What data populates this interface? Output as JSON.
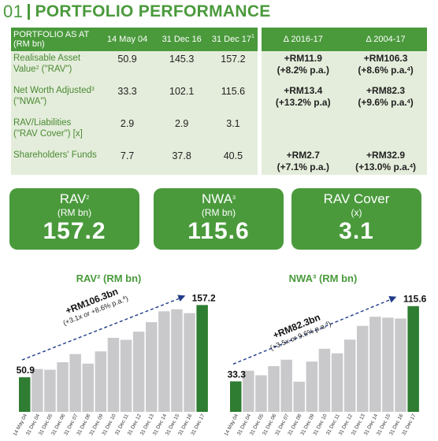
{
  "header": {
    "number": "01",
    "title": "PORTFOLIO PERFORMANCE"
  },
  "table": {
    "columns": [
      "PORTFOLIO AS AT (RM bn)",
      "14 May 04",
      "31 Dec 16",
      "31 Dec 17",
      "Δ 2016-17",
      "Δ 2004-17"
    ],
    "col3_sup": "1",
    "rows": [
      {
        "label": "Realisable Asset Value",
        "label_sup": "2",
        "label_suffix": " (\"RAV\")",
        "values": [
          "50.9",
          "145.3",
          "157.2"
        ],
        "chg1": [
          "+RM11.9",
          "(+8.2% p.a.)"
        ],
        "chg2": [
          "+RM106.3",
          "(+8.6% p.a."
        ],
        "chg2_sup": "4"
      },
      {
        "label": "Net Worth Adjusted",
        "label_sup": "3",
        "label_suffix": " (\"NWA\")",
        "values": [
          "33.3",
          "102.1",
          "115.6"
        ],
        "chg1": [
          "+RM13.4",
          "(+13.2% p.a)"
        ],
        "chg2": [
          "+RM82.3",
          "(+9.6% p.a."
        ],
        "chg2_sup": "4"
      },
      {
        "label": "RAV/Liabilities (\"RAV Cover\") [x]",
        "label_sup": "",
        "label_suffix": "",
        "values": [
          "2.9",
          "2.9",
          "3.1"
        ],
        "chg1": [
          "",
          ""
        ],
        "chg2": [
          "",
          ""
        ],
        "chg2_sup": ""
      },
      {
        "label": "Shareholders' Funds",
        "label_sup": "",
        "label_suffix": "",
        "values": [
          "7.7",
          "37.8",
          "40.5"
        ],
        "chg1": [
          "+RM2.7",
          "(+7.1% p.a.)"
        ],
        "chg2": [
          "+RM32.9",
          "(+13.0% p.a."
        ],
        "chg2_sup": "4"
      }
    ]
  },
  "tiles": [
    {
      "title": "RAV",
      "sup": "2",
      "unit": "(RM bn)",
      "value": "157.2"
    },
    {
      "title": "NWA",
      "sup": "3",
      "unit": "(RM bn)",
      "value": "115.6"
    },
    {
      "title": "RAV Cover",
      "sup": "",
      "unit": "(x)",
      "value": "3.1"
    }
  ],
  "colors": {
    "green": "#4a9a3c",
    "dark_green": "#2e7d32",
    "bar_grey": "#c9c9cc",
    "navy": "#1f3c88",
    "row_bg": "#e4eddb"
  },
  "chart_data": [
    {
      "type": "bar",
      "title": "RAV² (RM bn)",
      "categories": [
        "14 May 04",
        "31 Dec 04",
        "31 Dec 05",
        "31 Dec 06",
        "31 Dec 07",
        "31 Dec 08",
        "31 Dec 09",
        "31 Dec 10",
        "31 Dec 11",
        "31 Dec 12",
        "31 Dec 13",
        "31 Dec 14",
        "31 Dec 15",
        "31 Dec 16",
        "31 Dec 17"
      ],
      "values": [
        50.9,
        63,
        62,
        73,
        85,
        71,
        89,
        109,
        106,
        118,
        132,
        148,
        151,
        145.3,
        157.2
      ],
      "first_label": "50.9",
      "last_label": "157.2",
      "annotation": [
        "+RM106.3bn",
        "(+3.1x or +8.6% p.a."
      ],
      "annotation_sup": "4",
      "ylim": [
        0,
        175
      ]
    },
    {
      "type": "bar",
      "title": "NWA³ (RM bn)",
      "categories": [
        "14 May 04",
        "31 Dec 04",
        "31 Dec 05",
        "31 Dec 06",
        "31 Dec 07",
        "31 Dec 08",
        "31 Dec 09",
        "31 Dec 10",
        "31 Dec 11",
        "31 Dec 12",
        "31 Dec 13",
        "31 Dec 14",
        "31 Dec 15",
        "31 Dec 16",
        "31 Dec 17"
      ],
      "values": [
        33.3,
        45,
        40,
        50,
        57,
        33,
        55,
        69,
        64,
        79,
        94,
        104,
        103,
        102.1,
        115.6
      ],
      "first_label": "33.3",
      "last_label": "115.6",
      "annotation": [
        "+RM82.3bn",
        "(+3.5x or 9.6% p.a."
      ],
      "annotation_sup": "4",
      "ylim": [
        0,
        130
      ]
    }
  ]
}
